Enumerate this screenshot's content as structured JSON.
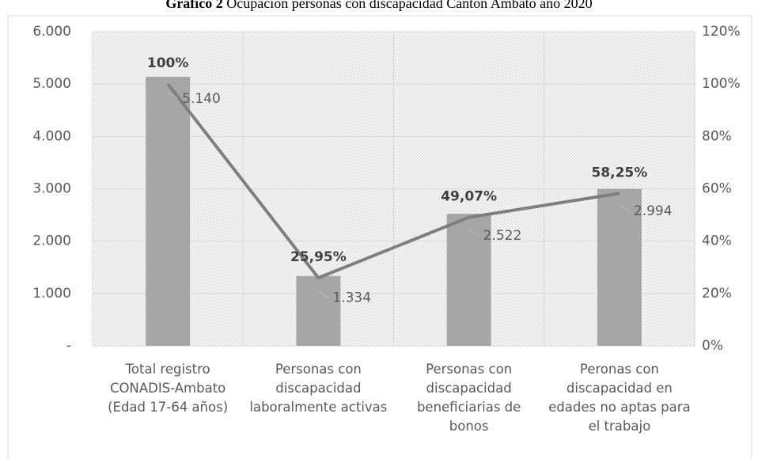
{
  "chart_data": {
    "type": "bar",
    "title": [
      "Gráfico 2",
      "Ocupación personas con discapacidad Cantón Ambato año 2020"
    ],
    "categories": [
      "Total registro CONADIS-Ambato (Edad 17-64 años)",
      "Personas con discapacidad laboralmente activas",
      "Personas con discapacidad beneficiarias de bonos",
      "Peronas con discapacidad en edades no aptas para el trabajo"
    ],
    "series": [
      {
        "type": "bar",
        "color": "#a6a6a6",
        "values": [
          5140,
          1334,
          2522,
          2994
        ],
        "value_labels": [
          "5.140",
          "1.334",
          "2.522",
          "2.994"
        ]
      },
      {
        "type": "line",
        "axis": "y2",
        "color": "#7f7f7f",
        "values": [
          100,
          25.95,
          49.07,
          58.25
        ],
        "value_labels": [
          "100%",
          "25,95%",
          "49,07%",
          "58,25%"
        ]
      }
    ],
    "ylim": [
      0,
      6000
    ],
    "yticks": [
      {
        "value": 0,
        "label": "-"
      },
      {
        "value": 1000,
        "label": "1.000"
      },
      {
        "value": 2000,
        "label": "2.000"
      },
      {
        "value": 3000,
        "label": "3.000"
      },
      {
        "value": 4000,
        "label": "4.000"
      },
      {
        "value": 5000,
        "label": "5.000"
      },
      {
        "value": 6000,
        "label": "6.000"
      }
    ],
    "y2lim": [
      0,
      120
    ],
    "y2ticks": [
      {
        "value": 0,
        "label": "0%"
      },
      {
        "value": 20,
        "label": "20%"
      },
      {
        "value": 40,
        "label": "40%"
      },
      {
        "value": 60,
        "label": "60%"
      },
      {
        "value": 80,
        "label": "80%"
      },
      {
        "value": 100,
        "label": "100%"
      },
      {
        "value": 120,
        "label": "120%"
      }
    ],
    "grid": true
  }
}
